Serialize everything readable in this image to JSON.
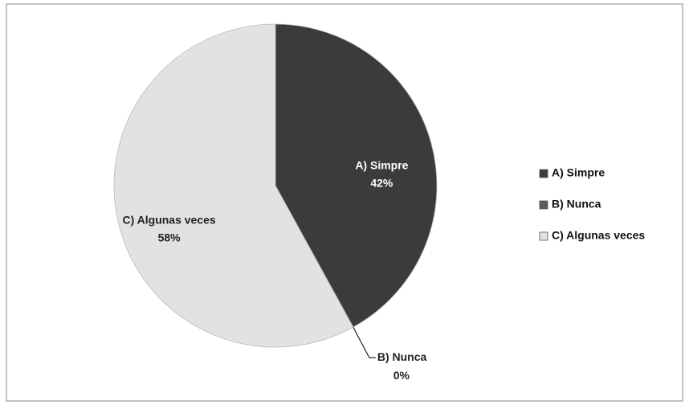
{
  "chart_data": {
    "type": "pie",
    "categories": [
      "A) Simpre",
      "B) Nunca",
      "C) Algunas veces"
    ],
    "values": [
      42,
      0,
      58
    ],
    "value_labels": [
      "42%",
      "0%",
      "58%"
    ],
    "colors": [
      "#3b3b3b",
      "#5a5a5a",
      "#e2e2e2"
    ],
    "label_colors": [
      "#ffffff",
      "#222222",
      "#222222"
    ],
    "legend": "right"
  }
}
